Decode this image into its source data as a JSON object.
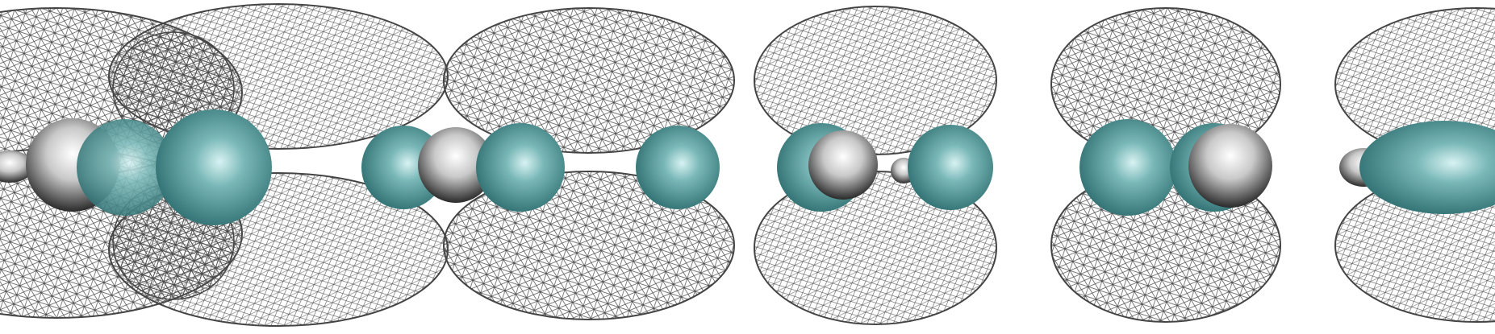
{
  "image": {
    "description_kind": "molecular-orbital-render",
    "background_color": "#ffffff"
  },
  "colors": {
    "mesh": "#3c3c3c",
    "atom_teal": "#7ab8b8",
    "atom_teal_dark": "#2e6e70",
    "atom_white": "#e8e8e8",
    "atom_white_dark": "#2a2a2a"
  },
  "panels": [
    {
      "name": "orbital-panel-1",
      "lobe_style": "wide-double-lobes"
    },
    {
      "name": "orbital-panel-2",
      "lobe_style": "paired-lobes"
    },
    {
      "name": "orbital-panel-3",
      "lobe_style": "paired-lobes"
    },
    {
      "name": "orbital-panel-4",
      "lobe_style": "partial-lobes"
    }
  ]
}
